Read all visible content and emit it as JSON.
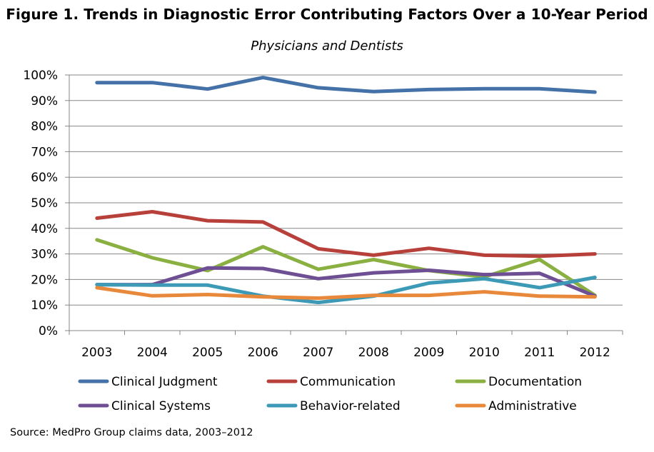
{
  "title": "Figure 1. Trends in Diagnostic Error Contributing Factors Over a 10-Year Period",
  "subtitle": "Physicians and Dentists",
  "source": "Source: MedPro Group claims data, 2003–2012",
  "chart_data": {
    "type": "line",
    "title": "Figure 1. Trends in Diagnostic Error Contributing Factors Over a 10-Year Period",
    "subtitle": "Physicians and Dentists",
    "xlabel": "",
    "ylabel": "",
    "x": [
      "2003",
      "2004",
      "2005",
      "2006",
      "2007",
      "2008",
      "2009",
      "2010",
      "2011",
      "2012"
    ],
    "ylim": [
      0,
      100
    ],
    "yticks": [
      "0%",
      "10%",
      "20%",
      "30%",
      "40%",
      "50%",
      "60%",
      "70%",
      "80%",
      "90%",
      "100%"
    ],
    "grid": "horizontal",
    "legend_position": "bottom",
    "series": [
      {
        "name": "Clinical Judgment",
        "color": "#4472A8",
        "values": [
          97,
          97,
          94.5,
          99,
          95,
          93.5,
          94.3,
          94.6,
          94.6,
          93.3
        ]
      },
      {
        "name": "Communication",
        "color": "#B8403B",
        "values": [
          44,
          46.5,
          43,
          42.5,
          32,
          29.5,
          32.2,
          29.5,
          29.1,
          30
        ]
      },
      {
        "name": "Documentation",
        "color": "#8BB042",
        "values": [
          35.5,
          28.5,
          23.5,
          32.8,
          24,
          27.8,
          23.5,
          21,
          27.8,
          13.8
        ]
      },
      {
        "name": "Clinical Systems",
        "color": "#6F4F93",
        "values": [
          18,
          18,
          24.5,
          24.3,
          20.3,
          22.6,
          23.6,
          21.9,
          22.4,
          13.5
        ]
      },
      {
        "name": "Behavior-related",
        "color": "#3C9AB6",
        "values": [
          18,
          17.8,
          17.8,
          13.5,
          11,
          13.5,
          18.6,
          20.3,
          16.8,
          20.8
        ]
      },
      {
        "name": "Administrative",
        "color": "#E8883A",
        "values": [
          16.8,
          13.6,
          14.1,
          13.2,
          12.7,
          13.8,
          13.8,
          15.2,
          13.5,
          13.2
        ]
      }
    ]
  }
}
